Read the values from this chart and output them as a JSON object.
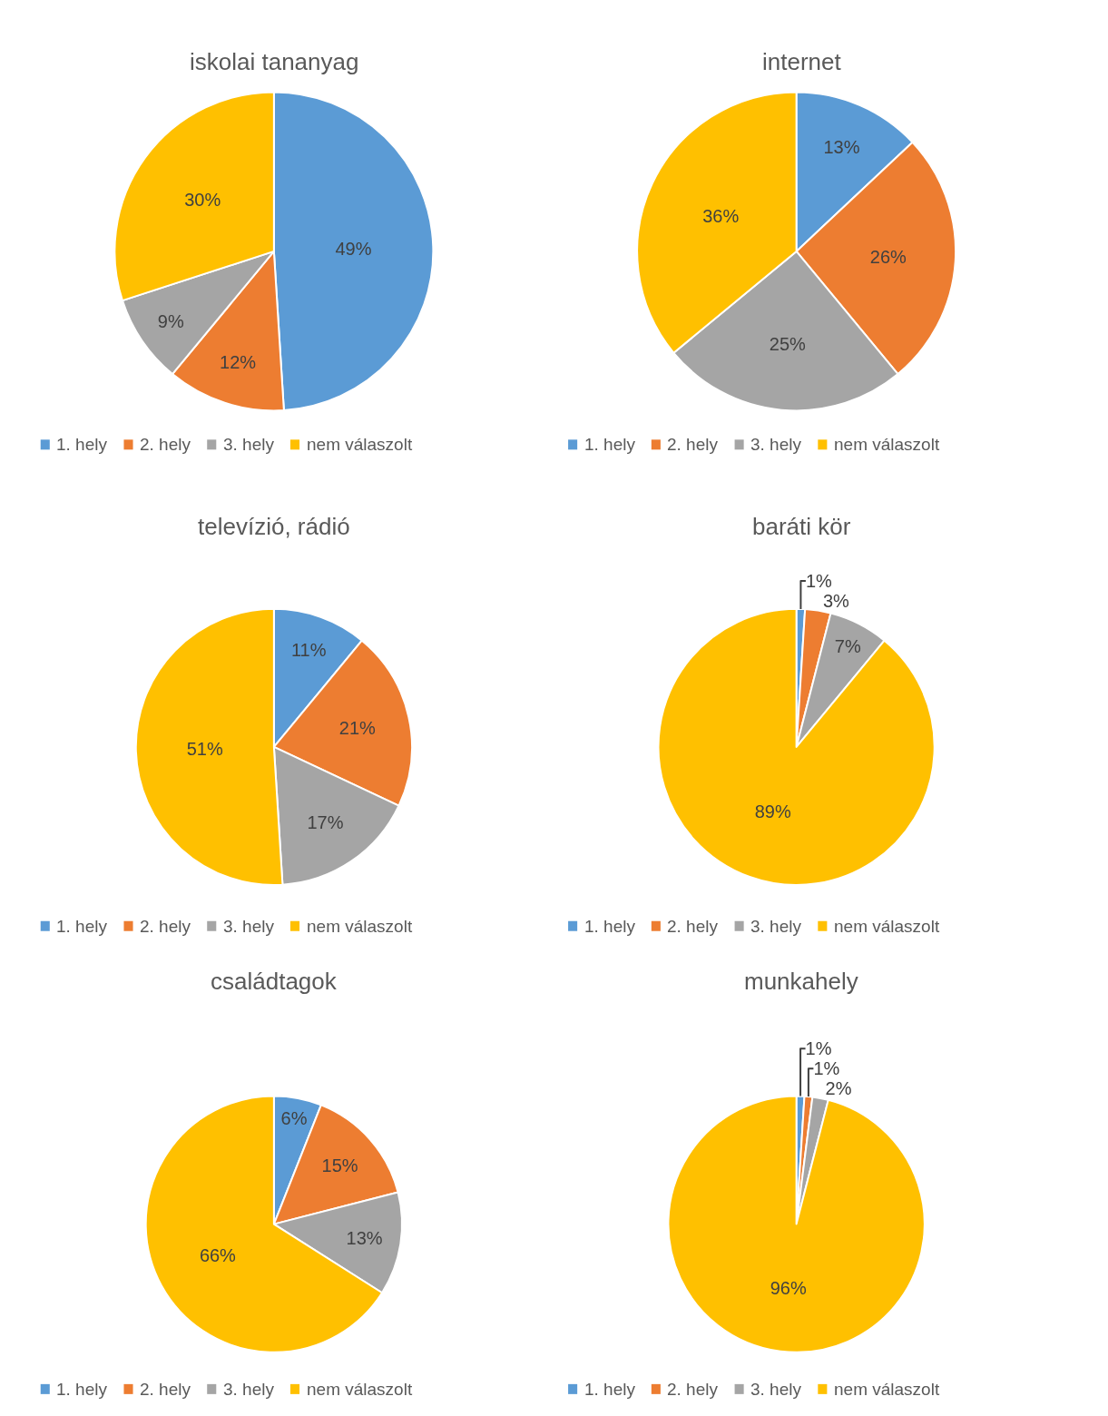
{
  "chart_data": [
    {
      "type": "pie",
      "title": "iskolai tananyag",
      "categories": [
        "1. hely",
        "2. hely",
        "3. hely",
        "nem válaszolt"
      ],
      "values": [
        49,
        12,
        9,
        30
      ],
      "value_labels": [
        "49%",
        "12%",
        "9%",
        "30%"
      ],
      "colors": [
        "#5b9bd5",
        "#ed7d31",
        "#a5a5a5",
        "#ffc000"
      ],
      "legend": "bottom"
    },
    {
      "type": "pie",
      "title": "internet",
      "categories": [
        "1. hely",
        "2. hely",
        "3. hely",
        "nem válaszolt"
      ],
      "values": [
        13,
        26,
        25,
        36
      ],
      "value_labels": [
        "13%",
        "26%",
        "25%",
        "36%"
      ],
      "colors": [
        "#5b9bd5",
        "#ed7d31",
        "#a5a5a5",
        "#ffc000"
      ],
      "legend": "bottom"
    },
    {
      "type": "pie",
      "title": "televízió, rádió",
      "categories": [
        "1. hely",
        "2. hely",
        "3. hely",
        "nem válaszolt"
      ],
      "values": [
        11,
        21,
        17,
        51
      ],
      "value_labels": [
        "11%",
        "21%",
        "17%",
        "51%"
      ],
      "colors": [
        "#5b9bd5",
        "#ed7d31",
        "#a5a5a5",
        "#ffc000"
      ],
      "legend": "bottom"
    },
    {
      "type": "pie",
      "title": "baráti kör",
      "categories": [
        "1. hely",
        "2. hely",
        "3. hely",
        "nem válaszolt"
      ],
      "values": [
        1,
        3,
        7,
        89
      ],
      "value_labels": [
        "1%",
        "3%",
        "7%",
        "89%"
      ],
      "colors": [
        "#5b9bd5",
        "#ed7d31",
        "#a5a5a5",
        "#ffc000"
      ],
      "legend": "bottom"
    },
    {
      "type": "pie",
      "title": "családtagok",
      "categories": [
        "1. hely",
        "2. hely",
        "3. hely",
        "nem válaszolt"
      ],
      "values": [
        6,
        15,
        13,
        66
      ],
      "value_labels": [
        "6%",
        "15%",
        "13%",
        "66%"
      ],
      "colors": [
        "#5b9bd5",
        "#ed7d31",
        "#a5a5a5",
        "#ffc000"
      ],
      "legend": "bottom"
    },
    {
      "type": "pie",
      "title": "munkahely",
      "categories": [
        "1. hely",
        "2. hely",
        "3. hely",
        "nem válaszolt"
      ],
      "values": [
        1,
        1,
        2,
        96
      ],
      "value_labels": [
        "1%",
        "1%",
        "2%",
        "96%"
      ],
      "colors": [
        "#5b9bd5",
        "#ed7d31",
        "#a5a5a5",
        "#ffc000"
      ],
      "legend": "bottom"
    }
  ]
}
